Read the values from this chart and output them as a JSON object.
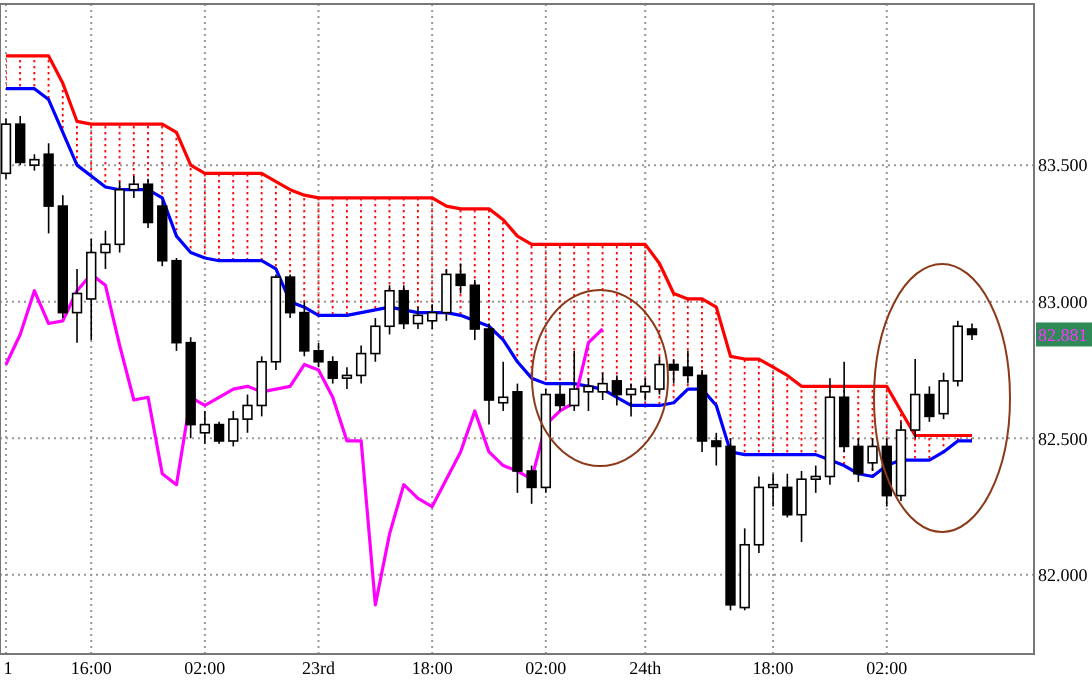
{
  "chart_data": {
    "type": "candlestick",
    "categories": [
      "1",
      null,
      null,
      null,
      null,
      null,
      "16:00",
      null,
      null,
      null,
      null,
      null,
      null,
      null,
      "02:00",
      null,
      null,
      null,
      null,
      null,
      null,
      null,
      "23rd",
      null,
      null,
      null,
      null,
      null,
      null,
      null,
      "18:00",
      null,
      null,
      null,
      null,
      null,
      null,
      null,
      "02:00",
      null,
      null,
      null,
      null,
      null,
      null,
      "24th",
      null,
      null,
      null,
      null,
      null,
      null,
      null,
      null,
      "18:00",
      null,
      null,
      null,
      null,
      null,
      null,
      null,
      "02:00",
      null,
      null,
      null,
      null,
      null,
      null
    ],
    "ohlc": [
      [
        83.47,
        83.67,
        83.45,
        83.65
      ],
      [
        83.65,
        83.68,
        83.5,
        83.51
      ],
      [
        83.5,
        83.54,
        83.48,
        83.52
      ],
      [
        83.54,
        83.58,
        83.25,
        83.35
      ],
      [
        83.35,
        83.39,
        82.94,
        82.96
      ],
      [
        82.96,
        83.12,
        82.85,
        83.03
      ],
      [
        83.01,
        83.23,
        82.86,
        83.18
      ],
      [
        83.18,
        83.26,
        83.12,
        83.21
      ],
      [
        83.21,
        83.44,
        83.18,
        83.41
      ],
      [
        83.41,
        83.46,
        83.38,
        83.43
      ],
      [
        83.43,
        83.45,
        83.27,
        83.29
      ],
      [
        83.35,
        83.37,
        83.13,
        83.15
      ],
      [
        83.15,
        83.16,
        82.82,
        82.85
      ],
      [
        82.85,
        82.87,
        82.5,
        82.55
      ],
      [
        82.52,
        82.6,
        82.48,
        82.55
      ],
      [
        82.55,
        82.56,
        82.48,
        82.49
      ],
      [
        82.49,
        82.6,
        82.47,
        82.57
      ],
      [
        82.57,
        82.66,
        82.52,
        82.62
      ],
      [
        82.62,
        82.8,
        82.58,
        82.78
      ],
      [
        82.78,
        83.1,
        82.75,
        83.09
      ],
      [
        83.09,
        83.1,
        82.94,
        82.96
      ],
      [
        82.96,
        83.0,
        82.8,
        82.82
      ],
      [
        82.82,
        82.85,
        82.76,
        82.78
      ],
      [
        82.78,
        82.8,
        82.7,
        82.72
      ],
      [
        82.72,
        82.76,
        82.68,
        82.73
      ],
      [
        82.73,
        82.84,
        82.7,
        82.81
      ],
      [
        82.81,
        82.94,
        82.78,
        82.91
      ],
      [
        82.91,
        83.06,
        82.88,
        83.04
      ],
      [
        83.04,
        83.06,
        82.9,
        82.92
      ],
      [
        82.92,
        82.98,
        82.9,
        82.95
      ],
      [
        82.93,
        82.99,
        82.9,
        82.96
      ],
      [
        82.96,
        83.12,
        82.93,
        83.1
      ],
      [
        83.1,
        83.14,
        83.03,
        83.06
      ],
      [
        83.06,
        83.08,
        82.86,
        82.9
      ],
      [
        82.9,
        82.92,
        82.55,
        82.64
      ],
      [
        82.63,
        82.78,
        82.6,
        82.65
      ],
      [
        82.67,
        82.7,
        82.3,
        82.38
      ],
      [
        82.38,
        82.4,
        82.26,
        82.32
      ],
      [
        82.32,
        82.68,
        82.3,
        82.66
      ],
      [
        82.66,
        82.7,
        82.6,
        82.62
      ],
      [
        82.62,
        82.82,
        82.6,
        82.68
      ],
      [
        82.67,
        82.72,
        82.6,
        82.69
      ],
      [
        82.67,
        82.74,
        82.64,
        82.7
      ],
      [
        82.71,
        82.73,
        82.62,
        82.66
      ],
      [
        82.66,
        82.7,
        82.58,
        82.68
      ],
      [
        82.67,
        82.72,
        82.64,
        82.69
      ],
      [
        82.68,
        82.8,
        82.66,
        82.77
      ],
      [
        82.77,
        82.79,
        82.7,
        82.75
      ],
      [
        82.76,
        82.82,
        82.7,
        82.73
      ],
      [
        82.73,
        82.75,
        82.45,
        82.49
      ],
      [
        82.49,
        82.52,
        82.4,
        82.47
      ],
      [
        82.47,
        82.5,
        81.87,
        81.89
      ],
      [
        81.88,
        82.17,
        81.87,
        82.11
      ],
      [
        82.11,
        82.36,
        82.08,
        82.32
      ],
      [
        82.32,
        82.37,
        82.25,
        82.33
      ],
      [
        82.32,
        82.37,
        82.21,
        82.22
      ],
      [
        82.22,
        82.38,
        82.12,
        82.35
      ],
      [
        82.35,
        82.4,
        82.3,
        82.36
      ],
      [
        82.36,
        82.72,
        82.33,
        82.65
      ],
      [
        82.65,
        82.78,
        82.45,
        82.47
      ],
      [
        82.47,
        82.5,
        82.34,
        82.37
      ],
      [
        82.41,
        82.5,
        82.38,
        82.47
      ],
      [
        82.47,
        82.5,
        82.25,
        82.29
      ],
      [
        82.29,
        82.56,
        82.27,
        82.53
      ],
      [
        82.53,
        82.79,
        82.5,
        82.66
      ],
      [
        82.66,
        82.69,
        82.56,
        82.58
      ],
      [
        82.59,
        82.74,
        82.57,
        82.71
      ],
      [
        82.71,
        82.93,
        82.69,
        82.91
      ],
      [
        82.9,
        82.92,
        82.86,
        82.88
      ]
    ],
    "series": [
      {
        "type": "line",
        "color": "#ff0000",
        "values": [
          83.9,
          83.9,
          83.9,
          83.9,
          83.8,
          83.66,
          83.65,
          83.65,
          83.65,
          83.65,
          83.65,
          83.65,
          83.62,
          83.5,
          83.47,
          83.47,
          83.47,
          83.47,
          83.47,
          83.44,
          83.41,
          83.39,
          83.38,
          83.38,
          83.38,
          83.38,
          83.38,
          83.38,
          83.38,
          83.38,
          83.38,
          83.35,
          83.34,
          83.34,
          83.34,
          83.3,
          83.24,
          83.21,
          83.21,
          83.21,
          83.21,
          83.21,
          83.21,
          83.21,
          83.21,
          83.21,
          83.14,
          83.03,
          83.01,
          83.01,
          82.98,
          82.8,
          82.79,
          82.79,
          82.76,
          82.73,
          82.69,
          82.69,
          82.69,
          82.69,
          82.69,
          82.69,
          82.69,
          82.6,
          82.51,
          82.51,
          82.51,
          82.51,
          82.51
        ],
        "upper": [
          83.9,
          83.9,
          83.9,
          83.9,
          83.8,
          83.66,
          83.65,
          83.65,
          83.65,
          83.65,
          83.65,
          83.65,
          83.62,
          83.5,
          83.47,
          83.47,
          83.47,
          83.47,
          83.47,
          83.44,
          83.41,
          83.39,
          83.38,
          83.38,
          83.38,
          83.38,
          83.38,
          83.38,
          83.38,
          83.38,
          83.38,
          83.35,
          83.34,
          83.34,
          83.34,
          83.3,
          83.24,
          83.21,
          83.21,
          83.21,
          83.21,
          83.21,
          83.21,
          83.21,
          83.21,
          83.21,
          83.14,
          83.03,
          83.01,
          83.01,
          82.98,
          82.8,
          82.79,
          82.79,
          82.76,
          82.73,
          82.69,
          82.69,
          82.69,
          82.69,
          82.69,
          82.69,
          82.69,
          82.6,
          82.51,
          82.51,
          82.51,
          82.51,
          82.51
        ],
        "lower": [
          83.78,
          83.78,
          83.78,
          83.74,
          83.62,
          83.5,
          83.46,
          83.42,
          83.41,
          83.41,
          83.41,
          83.38,
          83.24,
          83.18,
          83.16,
          83.15,
          83.15,
          83.15,
          83.15,
          83.12,
          83.0,
          82.98,
          82.95,
          82.95,
          82.95,
          82.96,
          82.97,
          82.98,
          82.97,
          82.96,
          82.96,
          82.96,
          82.95,
          82.93,
          82.91,
          82.86,
          82.78,
          82.72,
          82.7,
          82.7,
          82.7,
          82.69,
          82.68,
          82.65,
          82.62,
          82.62,
          82.62,
          82.63,
          82.68,
          82.68,
          82.62,
          82.45,
          82.44,
          82.44,
          82.44,
          82.44,
          82.44,
          82.44,
          82.42,
          82.4,
          82.37,
          82.36,
          82.4,
          82.42,
          82.42,
          82.42,
          82.45,
          82.49,
          82.49
        ]
      },
      {
        "type": "line",
        "color": "#0000ff",
        "values": [
          83.78,
          83.78,
          83.78,
          83.74,
          83.62,
          83.5,
          83.46,
          83.42,
          83.41,
          83.41,
          83.41,
          83.38,
          83.24,
          83.18,
          83.16,
          83.15,
          83.15,
          83.15,
          83.15,
          83.12,
          83.0,
          82.98,
          82.95,
          82.95,
          82.95,
          82.96,
          82.97,
          82.98,
          82.97,
          82.96,
          82.96,
          82.96,
          82.95,
          82.93,
          82.91,
          82.86,
          82.78,
          82.72,
          82.7,
          82.7,
          82.7,
          82.69,
          82.68,
          82.65,
          82.62,
          82.62,
          82.62,
          82.63,
          82.68,
          82.68,
          82.62,
          82.45,
          82.44,
          82.44,
          82.44,
          82.44,
          82.44,
          82.44,
          82.42,
          82.4,
          82.37,
          82.36,
          82.4,
          82.42,
          82.42,
          82.42,
          82.45,
          82.49,
          82.49
        ]
      },
      {
        "type": "line",
        "color": "#ff00ff",
        "values": [
          82.77,
          82.88,
          83.04,
          82.92,
          82.93,
          83.04,
          83.1,
          83.06,
          82.84,
          82.64,
          82.65,
          82.37,
          82.33,
          82.65,
          82.62,
          82.65,
          82.68,
          82.69,
          82.67,
          82.68,
          82.69,
          82.77,
          82.75,
          82.65,
          82.49,
          82.49,
          81.89,
          82.15,
          82.33,
          82.28,
          82.25,
          82.35,
          82.45,
          82.6,
          82.45,
          82.4,
          82.38,
          82.35,
          82.55,
          82.6,
          82.63,
          82.85,
          82.9,
          null,
          null,
          null,
          null,
          null,
          null,
          null,
          null,
          null,
          null,
          null,
          null,
          null,
          null,
          null,
          null,
          null,
          null,
          null,
          null,
          null,
          null,
          null,
          null,
          null,
          null
        ]
      }
    ],
    "ylim": [
      81.71,
      84.09
    ],
    "yticks": [
      {
        "value": 82,
        "label": "82.000"
      },
      {
        "value": 82.5,
        "label": "82.500"
      },
      {
        "value": 83,
        "label": "83.000"
      },
      {
        "value": 83.5,
        "label": "83.500"
      }
    ],
    "grid": true,
    "annotations": [
      "82.881"
    ]
  }
}
